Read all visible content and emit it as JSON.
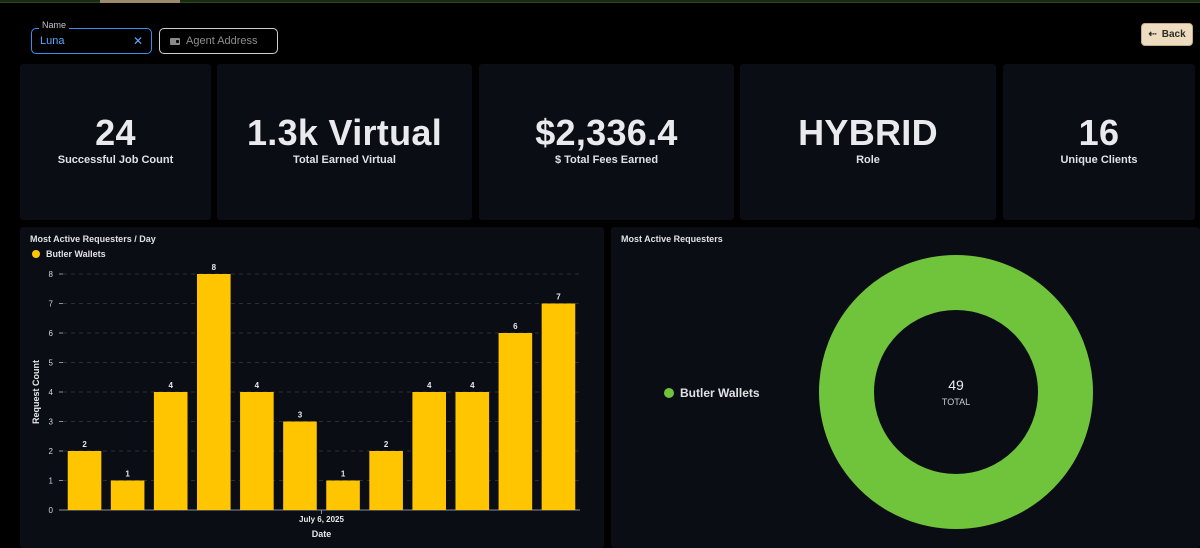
{
  "filters": {
    "name": {
      "label": "Name",
      "value": "Luna"
    },
    "agent_address": {
      "placeholder": "Agent Address"
    }
  },
  "back_button": {
    "label": "Back"
  },
  "stats": [
    {
      "value": "24",
      "label": "Successful Job Count"
    },
    {
      "value": "1.3k Virtual",
      "label": "Total Earned Virtual"
    },
    {
      "value": "$2,336.4",
      "label": "$ Total Fees Earned"
    },
    {
      "value": "HYBRID",
      "label": "Role"
    },
    {
      "value": "16",
      "label": "Unique Clients"
    }
  ],
  "bar_panel": {
    "title": "Most Active Requesters / Day",
    "legend": "Butler Wallets"
  },
  "donut_panel": {
    "title": "Most Active Requesters",
    "legend": "Butler Wallets",
    "total_value": "49",
    "total_label": "TOTAL"
  },
  "colors": {
    "bar": "#ffc600",
    "donut": "#70c43b",
    "accent": "#3b8ff0",
    "back": "#eddcc0"
  },
  "chart_data": [
    {
      "type": "bar",
      "title": "Most Active Requesters / Day",
      "xlabel": "Date",
      "ylabel": "Request Count",
      "x_tick_label": "July 6, 2025",
      "yticks": [
        0,
        1,
        2,
        3,
        4,
        5,
        6,
        7,
        8
      ],
      "ylim": [
        0,
        8
      ],
      "grid": true,
      "series": [
        {
          "name": "Butler Wallets",
          "values": [
            2,
            1,
            4,
            8,
            4,
            3,
            1,
            2,
            4,
            4,
            6,
            7
          ]
        }
      ]
    },
    {
      "type": "pie",
      "title": "Most Active Requesters",
      "donut": true,
      "slices": [
        {
          "label": "Butler Wallets",
          "value": 49
        }
      ],
      "center_text": "49",
      "center_subtext": "TOTAL"
    }
  ]
}
